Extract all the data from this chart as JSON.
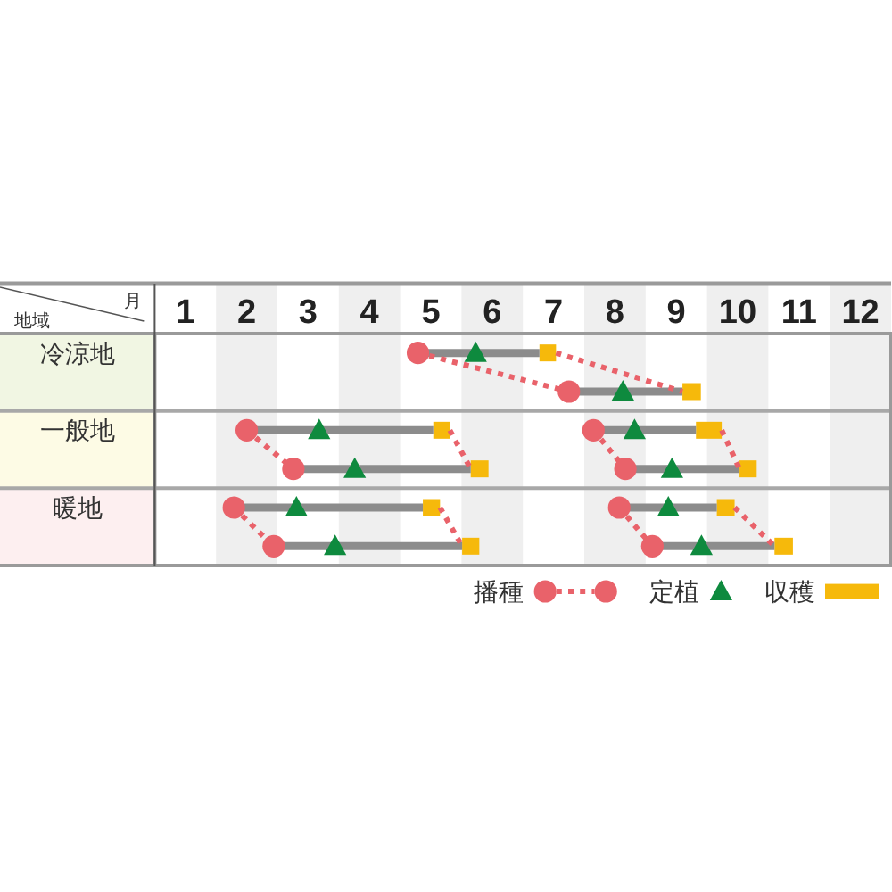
{
  "chart_data": {
    "type": "bar",
    "orientation": "horizontal",
    "xlabel": "月",
    "ylabel": "地域",
    "categories": [
      "冷涼地",
      null,
      "一般地",
      null,
      "暖地",
      null
    ],
    "xlim": [
      1,
      13
    ],
    "xticks": [
      {
        "value": 1.5,
        "label": "1"
      },
      {
        "value": 2.5,
        "label": "2"
      },
      {
        "value": 3.5,
        "label": "3"
      },
      {
        "value": 4.5,
        "label": "4"
      },
      {
        "value": 5.5,
        "label": "5"
      },
      {
        "value": 6.5,
        "label": "6"
      },
      {
        "value": 7.5,
        "label": "7"
      },
      {
        "value": 8.5,
        "label": "8"
      },
      {
        "value": 9.5,
        "label": "9"
      },
      {
        "value": 10.5,
        "label": "10"
      },
      {
        "value": 11.5,
        "label": "11"
      },
      {
        "value": 12.5,
        "label": "12"
      }
    ],
    "bands": [
      {
        "axis": "x",
        "from": 2,
        "to": 3,
        "color": "#efefef"
      },
      {
        "axis": "x",
        "from": 4,
        "to": 5,
        "color": "#efefef"
      },
      {
        "axis": "x",
        "from": 6,
        "to": 7,
        "color": "#efefef"
      },
      {
        "axis": "x",
        "from": 8,
        "to": 9,
        "color": "#efefef"
      },
      {
        "axis": "x",
        "from": 10,
        "to": 11,
        "color": "#efefef"
      },
      {
        "axis": "x",
        "from": 12,
        "to": 13,
        "color": "#efefef"
      }
    ],
    "legend": "bottom right",
    "series": [
      {
        "type": "scatter",
        "name": "播種",
        "color": "#e9626a",
        "marker": "circle",
        "values": [
          5.29,
          7.75,
          2.5,
          3.26,
          2.29,
          2.94
        ]
      },
      {
        "type": "scatter",
        "color": "#e9626a",
        "marker": "circle",
        "values": [
          null,
          null,
          8.15,
          8.67,
          8.57,
          9.11
        ]
      },
      {
        "type": "scatter",
        "name": "定植",
        "color": "#0e8a3e",
        "marker": "triangle",
        "values": [
          6.23,
          8.63,
          3.68,
          4.26,
          3.31,
          3.94
        ]
      },
      {
        "type": "scatter",
        "color": "#0e8a3e",
        "marker": "triangle",
        "values": [
          null,
          null,
          8.82,
          9.43,
          9.37,
          9.91
        ]
      },
      {
        "type": "bar",
        "name": "収穫",
        "color": "#f6b90b",
        "base": [
          7.27,
          9.6,
          5.54,
          6.15,
          5.37,
          6.01
        ],
        "values": [
          0.27,
          0.3,
          0.27,
          0.29,
          0.28,
          0.28
        ]
      },
      {
        "type": "bar",
        "color": "#f6b90b",
        "base": [
          null,
          null,
          9.82,
          10.53,
          10.16,
          11.1
        ],
        "values": [
          null,
          null,
          0.42,
          0.28,
          0.29,
          0.3
        ]
      },
      {
        "type": "bar",
        "color": "#8c8c8c",
        "base": [
          5.29,
          7.75,
          2.5,
          3.26,
          2.29,
          2.94
        ],
        "values": [
          1.98,
          1.85,
          3.04,
          2.89,
          3.08,
          3.07
        ]
      },
      {
        "type": "bar",
        "color": "#8c8c8c",
        "base": [
          null,
          null,
          8.15,
          8.67,
          8.57,
          9.11
        ],
        "values": [
          null,
          null,
          1.67,
          1.86,
          1.59,
          1.99
        ]
      },
      {
        "type": "line",
        "color": "#e9626a",
        "line_style": "dotted",
        "marker": "none",
        "values": [
          5.29,
          7.75,
          null,
          null,
          null,
          null
        ]
      },
      {
        "type": "line",
        "color": "#e9626a",
        "line_style": "dotted",
        "marker": "none",
        "values": [
          7.54,
          9.6,
          null,
          null,
          null,
          null
        ]
      },
      {
        "type": "line",
        "color": "#e9626a",
        "line_style": "dotted",
        "marker": "none",
        "values": [
          null,
          null,
          2.5,
          3.26,
          null,
          null
        ]
      },
      {
        "type": "line",
        "color": "#e9626a",
        "line_style": "dotted",
        "marker": "none",
        "values": [
          null,
          null,
          5.81,
          6.15,
          null,
          null
        ]
      },
      {
        "type": "line",
        "color": "#e9626a",
        "line_style": "dotted",
        "marker": "none",
        "values": [
          null,
          null,
          8.15,
          8.67,
          null,
          null
        ]
      },
      {
        "type": "line",
        "color": "#e9626a",
        "line_style": "dotted",
        "marker": "none",
        "values": [
          null,
          null,
          10.24,
          10.53,
          null,
          null
        ]
      },
      {
        "type": "line",
        "color": "#e9626a",
        "line_style": "dotted",
        "marker": "none",
        "values": [
          null,
          null,
          null,
          null,
          2.29,
          2.94
        ]
      },
      {
        "type": "line",
        "color": "#e9626a",
        "line_style": "dotted",
        "marker": "none",
        "values": [
          null,
          null,
          null,
          null,
          5.65,
          6.01
        ]
      },
      {
        "type": "line",
        "color": "#e9626a",
        "line_style": "dotted",
        "marker": "none",
        "values": [
          null,
          null,
          null,
          null,
          8.57,
          9.11
        ]
      },
      {
        "type": "line",
        "color": "#e9626a",
        "line_style": "dotted",
        "marker": "none",
        "values": [
          null,
          null,
          null,
          null,
          10.45,
          11.1
        ]
      }
    ]
  }
}
